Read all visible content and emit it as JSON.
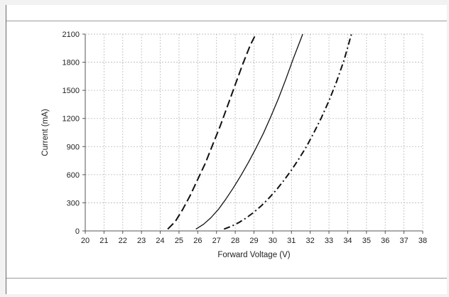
{
  "chart_data": {
    "type": "line",
    "xlabel": "Forward Voltage (V)",
    "ylabel": "Current (mA)",
    "xlim": [
      20,
      38
    ],
    "ylim": [
      0,
      2100
    ],
    "x_ticks": [
      "20",
      "21",
      "22",
      "23",
      "24",
      "25",
      "26",
      "27",
      "28",
      "29",
      "30",
      "31",
      "32",
      "33",
      "34",
      "35",
      "36",
      "37",
      "38"
    ],
    "y_ticks": [
      "0",
      "300",
      "600",
      "900",
      "1200",
      "1500",
      "1800",
      "2100"
    ],
    "grid": true,
    "legend": "none",
    "series": [
      {
        "style": "dashed",
        "x": [
          24.4,
          24.8,
          25.2,
          25.6,
          26.0,
          26.4,
          26.8,
          27.2,
          27.6,
          28.0,
          28.4,
          28.8,
          29.1
        ],
        "y": [
          20,
          100,
          230,
          380,
          550,
          720,
          920,
          1120,
          1340,
          1560,
          1780,
          1980,
          2100
        ]
      },
      {
        "style": "solid",
        "x": [
          25.9,
          26.3,
          26.7,
          27.1,
          27.5,
          27.9,
          28.3,
          28.7,
          29.1,
          29.5,
          29.9,
          30.3,
          30.7,
          31.1,
          31.6
        ],
        "y": [
          20,
          70,
          140,
          230,
          340,
          460,
          590,
          730,
          880,
          1040,
          1220,
          1410,
          1620,
          1840,
          2100
        ]
      },
      {
        "style": "dash-dot",
        "x": [
          27.4,
          27.8,
          28.2,
          28.6,
          29.0,
          29.4,
          29.8,
          30.2,
          30.6,
          31.0,
          31.4,
          31.8,
          32.2,
          32.6,
          33.0,
          33.4,
          33.8,
          34.2
        ],
        "y": [
          20,
          50,
          90,
          140,
          200,
          270,
          350,
          440,
          540,
          650,
          770,
          900,
          1050,
          1210,
          1390,
          1590,
          1820,
          2100
        ]
      }
    ]
  }
}
